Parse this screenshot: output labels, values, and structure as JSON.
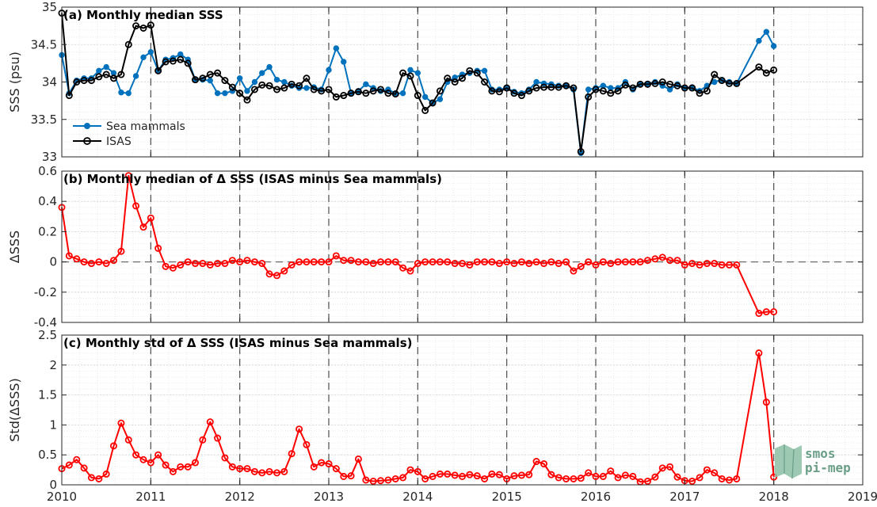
{
  "chart_data": [
    {
      "type": "line",
      "title": "(a) Monthly median SSS",
      "xlabel": "",
      "ylabel": "SSS (psu)",
      "xlim": [
        2010,
        2019
      ],
      "ylim": [
        33,
        35
      ],
      "yticks": [
        "33",
        "33.5",
        "34",
        "34.5",
        "35"
      ],
      "grid": true,
      "legend_position": "lower-left",
      "series": [
        {
          "name": "Sea mammals",
          "color": "#0072bd",
          "marker": "filled-dot",
          "x": [
            2010.0,
            2010.083,
            2010.167,
            2010.25,
            2010.333,
            2010.417,
            2010.5,
            2010.583,
            2010.667,
            2010.75,
            2010.833,
            2010.917,
            2011.0,
            2011.083,
            2011.167,
            2011.25,
            2011.333,
            2011.417,
            2011.5,
            2011.583,
            2011.667,
            2011.75,
            2011.833,
            2011.917,
            2012.0,
            2012.083,
            2012.167,
            2012.25,
            2012.333,
            2012.417,
            2012.5,
            2012.583,
            2012.667,
            2012.75,
            2012.833,
            2012.917,
            2013.0,
            2013.083,
            2013.167,
            2013.25,
            2013.333,
            2013.417,
            2013.5,
            2013.583,
            2013.667,
            2013.75,
            2013.833,
            2013.917,
            2014.0,
            2014.083,
            2014.167,
            2014.25,
            2014.333,
            2014.417,
            2014.5,
            2014.583,
            2014.667,
            2014.75,
            2014.833,
            2014.917,
            2015.0,
            2015.083,
            2015.167,
            2015.25,
            2015.333,
            2015.417,
            2015.5,
            2015.583,
            2015.667,
            2015.75,
            2015.833,
            2015.917,
            2016.0,
            2016.083,
            2016.167,
            2016.25,
            2016.333,
            2016.417,
            2016.5,
            2016.583,
            2016.667,
            2016.75,
            2016.833,
            2016.917,
            2017.0,
            2017.083,
            2017.167,
            2017.25,
            2017.333,
            2017.417,
            2017.5,
            2017.583,
            2017.833,
            2017.917,
            2018.0
          ],
          "values": [
            34.36,
            33.85,
            34.02,
            34.05,
            34.05,
            34.15,
            34.2,
            34.12,
            33.86,
            33.85,
            34.08,
            34.33,
            34.4,
            34.15,
            34.3,
            34.32,
            34.37,
            34.3,
            34.03,
            34.03,
            34.02,
            33.85,
            33.85,
            33.88,
            34.05,
            33.88,
            34.0,
            34.12,
            34.2,
            34.03,
            34.0,
            33.95,
            33.92,
            33.92,
            33.93,
            33.9,
            34.16,
            34.45,
            34.27,
            33.85,
            33.88,
            33.97,
            33.92,
            33.88,
            33.9,
            33.85,
            33.85,
            34.16,
            34.12,
            33.8,
            33.72,
            33.77,
            34.0,
            34.06,
            34.1,
            34.12,
            34.15,
            34.15,
            33.9,
            33.9,
            33.92,
            33.87,
            33.85,
            33.9,
            34.0,
            33.98,
            33.97,
            33.95,
            33.95,
            33.9,
            33.05,
            33.9,
            33.92,
            33.95,
            33.92,
            33.92,
            34.0,
            33.9,
            33.97,
            33.98,
            34.0,
            33.95,
            33.9,
            33.97,
            33.92,
            33.93,
            33.88,
            33.95,
            34.0,
            34.03,
            34.0,
            33.98,
            34.55,
            34.67,
            34.48
          ]
        },
        {
          "name": "ISAS",
          "color": "#000000",
          "marker": "open-circle",
          "x": [
            2010.0,
            2010.083,
            2010.167,
            2010.25,
            2010.333,
            2010.417,
            2010.5,
            2010.583,
            2010.667,
            2010.75,
            2010.833,
            2010.917,
            2011.0,
            2011.083,
            2011.167,
            2011.25,
            2011.333,
            2011.417,
            2011.5,
            2011.583,
            2011.667,
            2011.75,
            2011.833,
            2011.917,
            2012.0,
            2012.083,
            2012.167,
            2012.25,
            2012.333,
            2012.417,
            2012.5,
            2012.583,
            2012.667,
            2012.75,
            2012.833,
            2012.917,
            2013.0,
            2013.083,
            2013.167,
            2013.25,
            2013.333,
            2013.417,
            2013.5,
            2013.583,
            2013.667,
            2013.75,
            2013.833,
            2013.917,
            2014.0,
            2014.083,
            2014.167,
            2014.25,
            2014.333,
            2014.417,
            2014.5,
            2014.583,
            2014.667,
            2014.75,
            2014.833,
            2014.917,
            2015.0,
            2015.083,
            2015.167,
            2015.25,
            2015.333,
            2015.417,
            2015.5,
            2015.583,
            2015.667,
            2015.75,
            2015.833,
            2015.917,
            2016.0,
            2016.083,
            2016.167,
            2016.25,
            2016.333,
            2016.417,
            2016.5,
            2016.583,
            2016.667,
            2016.75,
            2016.833,
            2016.917,
            2017.0,
            2017.083,
            2017.167,
            2017.25,
            2017.333,
            2017.417,
            2017.5,
            2017.583,
            2017.833,
            2017.917,
            2018.0
          ],
          "values": [
            34.92,
            33.82,
            34.0,
            34.02,
            34.02,
            34.07,
            34.1,
            34.05,
            34.1,
            34.5,
            34.75,
            34.72,
            34.76,
            34.15,
            34.27,
            34.28,
            34.3,
            34.25,
            34.03,
            34.05,
            34.1,
            34.12,
            34.02,
            33.93,
            33.85,
            33.76,
            33.9,
            33.96,
            33.95,
            33.9,
            33.92,
            33.97,
            33.95,
            34.05,
            33.9,
            33.88,
            33.9,
            33.8,
            33.82,
            33.85,
            33.87,
            33.85,
            33.88,
            33.9,
            33.85,
            33.84,
            34.12,
            34.08,
            33.82,
            33.62,
            33.72,
            33.88,
            34.05,
            34.0,
            34.05,
            34.15,
            34.12,
            34.0,
            33.88,
            33.87,
            33.92,
            33.85,
            33.82,
            33.88,
            33.92,
            33.93,
            33.93,
            33.93,
            33.95,
            33.92,
            33.07,
            33.8,
            33.9,
            33.88,
            33.85,
            33.88,
            33.96,
            33.92,
            33.97,
            33.97,
            33.98,
            34.0,
            33.97,
            33.95,
            33.92,
            33.92,
            33.85,
            33.88,
            34.1,
            34.02,
            33.98,
            33.98,
            34.2,
            34.12,
            34.16
          ]
        }
      ]
    },
    {
      "type": "line",
      "title": "(b) Monthly median of Δ SSS (ISAS minus Sea mammals)",
      "xlabel": "",
      "ylabel": "ΔSSS",
      "xlim": [
        2010,
        2019
      ],
      "ylim": [
        -0.4,
        0.6
      ],
      "yticks": [
        "-0.4",
        "-0.2",
        "0",
        "0.2",
        "0.4",
        "0.6"
      ],
      "grid": true,
      "series": [
        {
          "name": "",
          "color": "#ff0000",
          "marker": "open-circle",
          "x": [
            2010.0,
            2010.083,
            2010.167,
            2010.25,
            2010.333,
            2010.417,
            2010.5,
            2010.583,
            2010.667,
            2010.75,
            2010.833,
            2010.917,
            2011.0,
            2011.083,
            2011.167,
            2011.25,
            2011.333,
            2011.417,
            2011.5,
            2011.583,
            2011.667,
            2011.75,
            2011.833,
            2011.917,
            2012.0,
            2012.083,
            2012.167,
            2012.25,
            2012.333,
            2012.417,
            2012.5,
            2012.583,
            2012.667,
            2012.75,
            2012.833,
            2012.917,
            2013.0,
            2013.083,
            2013.167,
            2013.25,
            2013.333,
            2013.417,
            2013.5,
            2013.583,
            2013.667,
            2013.75,
            2013.833,
            2013.917,
            2014.0,
            2014.083,
            2014.167,
            2014.25,
            2014.333,
            2014.417,
            2014.5,
            2014.583,
            2014.667,
            2014.75,
            2014.833,
            2014.917,
            2015.0,
            2015.083,
            2015.167,
            2015.25,
            2015.333,
            2015.417,
            2015.5,
            2015.583,
            2015.667,
            2015.75,
            2015.833,
            2015.917,
            2016.0,
            2016.083,
            2016.167,
            2016.25,
            2016.333,
            2016.417,
            2016.5,
            2016.583,
            2016.667,
            2016.75,
            2016.833,
            2016.917,
            2017.0,
            2017.083,
            2017.167,
            2017.25,
            2017.333,
            2017.417,
            2017.5,
            2017.583,
            2017.833,
            2017.917,
            2018.0
          ],
          "values": [
            0.36,
            0.04,
            0.02,
            0.0,
            -0.01,
            0.0,
            -0.01,
            0.01,
            0.07,
            0.57,
            0.37,
            0.23,
            0.29,
            0.09,
            -0.03,
            -0.04,
            -0.02,
            0.0,
            -0.01,
            -0.01,
            -0.02,
            -0.01,
            -0.01,
            0.01,
            0.0,
            0.01,
            0.0,
            -0.01,
            -0.08,
            -0.09,
            -0.06,
            -0.02,
            0.0,
            0.0,
            0.0,
            0.0,
            0.0,
            0.04,
            0.01,
            0.01,
            0.0,
            0.0,
            -0.01,
            0.0,
            0.0,
            0.0,
            -0.04,
            -0.06,
            -0.01,
            0.0,
            0.0,
            0.0,
            0.0,
            -0.01,
            -0.01,
            -0.02,
            0.0,
            0.0,
            0.0,
            -0.01,
            0.0,
            -0.01,
            0.0,
            -0.01,
            0.0,
            -0.01,
            0.0,
            -0.01,
            0.0,
            -0.06,
            -0.03,
            0.0,
            -0.02,
            0.0,
            -0.01,
            0.0,
            0.0,
            0.0,
            0.0,
            0.01,
            0.02,
            0.03,
            0.01,
            0.01,
            -0.02,
            -0.01,
            -0.02,
            -0.01,
            -0.01,
            -0.02,
            -0.02,
            -0.02,
            -0.34,
            -0.33,
            -0.33
          ]
        }
      ]
    },
    {
      "type": "line",
      "title": "(c) Monthly std of Δ SSS (ISAS minus Sea mammals)",
      "xlabel": "",
      "ylabel": "Std(ΔSSS)",
      "xlim": [
        2010,
        2019
      ],
      "ylim": [
        0,
        2.5
      ],
      "yticks": [
        "0",
        "0.5",
        "1",
        "1.5",
        "2",
        "2.5"
      ],
      "xticks": [
        "2010",
        "2011",
        "2012",
        "2013",
        "2014",
        "2015",
        "2016",
        "2017",
        "2018",
        "2019"
      ],
      "grid": true,
      "series": [
        {
          "name": "",
          "color": "#ff0000",
          "marker": "open-circle",
          "x": [
            2010.0,
            2010.083,
            2010.167,
            2010.25,
            2010.333,
            2010.417,
            2010.5,
            2010.583,
            2010.667,
            2010.75,
            2010.833,
            2010.917,
            2011.0,
            2011.083,
            2011.167,
            2011.25,
            2011.333,
            2011.417,
            2011.5,
            2011.583,
            2011.667,
            2011.75,
            2011.833,
            2011.917,
            2012.0,
            2012.083,
            2012.167,
            2012.25,
            2012.333,
            2012.417,
            2012.5,
            2012.583,
            2012.667,
            2012.75,
            2012.833,
            2012.917,
            2013.0,
            2013.083,
            2013.167,
            2013.25,
            2013.333,
            2013.417,
            2013.5,
            2013.583,
            2013.667,
            2013.75,
            2013.833,
            2013.917,
            2014.0,
            2014.083,
            2014.167,
            2014.25,
            2014.333,
            2014.417,
            2014.5,
            2014.583,
            2014.667,
            2014.75,
            2014.833,
            2014.917,
            2015.0,
            2015.083,
            2015.167,
            2015.25,
            2015.333,
            2015.417,
            2015.5,
            2015.583,
            2015.667,
            2015.75,
            2015.833,
            2015.917,
            2016.0,
            2016.083,
            2016.167,
            2016.25,
            2016.333,
            2016.417,
            2016.5,
            2016.583,
            2016.667,
            2016.75,
            2016.833,
            2016.917,
            2017.0,
            2017.083,
            2017.167,
            2017.25,
            2017.333,
            2017.417,
            2017.5,
            2017.583,
            2017.833,
            2017.917,
            2018.0
          ],
          "values": [
            0.27,
            0.33,
            0.42,
            0.28,
            0.12,
            0.1,
            0.18,
            0.65,
            1.03,
            0.75,
            0.5,
            0.42,
            0.37,
            0.5,
            0.33,
            0.22,
            0.3,
            0.3,
            0.37,
            0.75,
            1.05,
            0.78,
            0.45,
            0.3,
            0.27,
            0.27,
            0.22,
            0.2,
            0.22,
            0.2,
            0.22,
            0.52,
            0.93,
            0.67,
            0.3,
            0.37,
            0.35,
            0.27,
            0.14,
            0.15,
            0.43,
            0.08,
            0.06,
            0.07,
            0.08,
            0.1,
            0.12,
            0.25,
            0.22,
            0.1,
            0.14,
            0.18,
            0.18,
            0.16,
            0.14,
            0.17,
            0.15,
            0.1,
            0.18,
            0.17,
            0.1,
            0.15,
            0.16,
            0.17,
            0.39,
            0.35,
            0.17,
            0.12,
            0.1,
            0.1,
            0.11,
            0.2,
            0.14,
            0.14,
            0.23,
            0.12,
            0.16,
            0.14,
            0.05,
            0.06,
            0.13,
            0.28,
            0.3,
            0.13,
            0.07,
            0.06,
            0.12,
            0.25,
            0.2,
            0.1,
            0.08,
            0.1,
            2.2,
            1.38,
            0.13
          ]
        }
      ]
    }
  ],
  "legend": {
    "items": [
      {
        "label": "Sea mammals",
        "color": "#0072bd"
      },
      {
        "label": "ISAS",
        "color": "#000000"
      }
    ]
  },
  "logo": {
    "line1": "smos",
    "line2": "pi-mep",
    "color": "#6a9e86"
  }
}
